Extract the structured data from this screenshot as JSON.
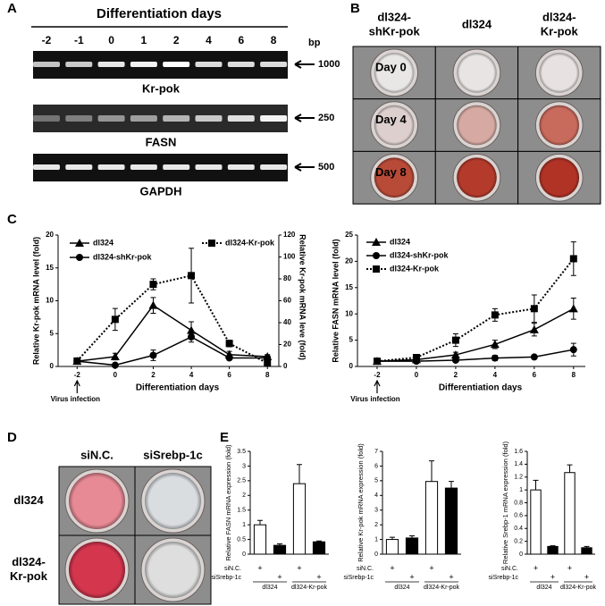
{
  "panels": {
    "A": {
      "label": "A",
      "title": "Differentiation days",
      "lanes": [
        "-2",
        "-1",
        "0",
        "1",
        "2",
        "4",
        "6",
        "8"
      ],
      "bp_label": "bp",
      "gels": [
        {
          "name": "Kr-pok",
          "size": "1000"
        },
        {
          "name": "FASN",
          "size": "250"
        },
        {
          "name": "GAPDH",
          "size": "500"
        }
      ]
    },
    "B": {
      "label": "B",
      "columns": [
        [
          "dl324-",
          "shKr-pok"
        ],
        [
          "dl324"
        ],
        [
          "dl324-",
          "Kr-pok"
        ]
      ],
      "rows": [
        "Day 0",
        "Day  4",
        "Day 8"
      ]
    },
    "C": {
      "label": "C"
    },
    "D": {
      "label": "D",
      "columns": [
        "siN.C.",
        "siSrebp-1c"
      ],
      "rows": [
        [
          "dl324"
        ],
        [
          "dl324-",
          "Kr-pok"
        ]
      ]
    },
    "E": {
      "label": "E"
    }
  },
  "chart_data": [
    {
      "type": "line",
      "x": [
        -2,
        0,
        2,
        4,
        6,
        8
      ],
      "xlim": [
        -3,
        8.6
      ],
      "xticks": [
        -2,
        0,
        2,
        4,
        6,
        8
      ],
      "xlabel": "Differentiation days",
      "ylabel": "Relative Kr-pok mRNA level (fold)",
      "y2label": "Relative Kr-pok mRNA leve (fold)",
      "ylim": [
        0,
        20
      ],
      "yticks": [
        0,
        5,
        10,
        15,
        20
      ],
      "y2lim": [
        0,
        120
      ],
      "y2ticks": [
        0,
        20,
        40,
        60,
        80,
        100,
        120
      ],
      "annotation": "Virus infection",
      "series": [
        {
          "name": "dl324",
          "color": "#000000",
          "marker": "triangle",
          "dashed": false,
          "values": [
            0.8,
            1.5,
            9.3,
            5.5,
            1.8,
            1.5
          ],
          "errors": [
            0.3,
            0.5,
            1.2,
            1.3,
            0.5,
            0.3
          ]
        },
        {
          "name": "dl324-shKr-pok",
          "color": "#000000",
          "marker": "circle",
          "dashed": false,
          "values": [
            0.8,
            0.2,
            1.7,
            4.5,
            1.3,
            1.3
          ],
          "errors": [
            0.3,
            0.2,
            0.8,
            0.8,
            0.3,
            0.3
          ]
        },
        {
          "name": "dl324-Kr-pok",
          "color": "#000000",
          "marker": "square",
          "dashed": true,
          "axis": "y2",
          "values": [
            5,
            43,
            75,
            83,
            21,
            3
          ],
          "errors": [
            1,
            10,
            5,
            25,
            3,
            2
          ]
        }
      ]
    },
    {
      "type": "line",
      "x": [
        -2,
        0,
        2,
        4,
        6,
        8
      ],
      "xlim": [
        -3,
        8.6
      ],
      "xticks": [
        -2,
        0,
        2,
        4,
        6,
        8
      ],
      "xlabel": "Differentiation days",
      "ylabel": "Relative FASN mRNA level (fold)",
      "ylim": [
        0,
        25
      ],
      "yticks": [
        0,
        5,
        10,
        15,
        20,
        25
      ],
      "annotation": "Virus infection",
      "series": [
        {
          "name": "dl324",
          "color": "#000000",
          "marker": "triangle",
          "dashed": false,
          "values": [
            1,
            1.3,
            2.2,
            4.2,
            7,
            11
          ],
          "errors": [
            0.2,
            0.3,
            0.5,
            0.8,
            1.2,
            2
          ]
        },
        {
          "name": "dl324-shKr-pok",
          "color": "#000000",
          "marker": "circle",
          "dashed": false,
          "values": [
            1,
            1,
            1.2,
            1.6,
            1.8,
            3.2
          ],
          "errors": [
            0.2,
            0.2,
            0.3,
            0.5,
            0.3,
            1.2
          ]
        },
        {
          "name": "dl324-Kr-pok",
          "color": "#000000",
          "marker": "square",
          "dashed": true,
          "values": [
            1,
            1.7,
            5,
            9.8,
            11,
            20.5
          ],
          "errors": [
            0.2,
            0.4,
            1.2,
            1.2,
            2.6,
            3.2
          ]
        }
      ]
    },
    {
      "type": "bar",
      "ylabel": "Relative FASN mRNA expression (fold)",
      "ylim": [
        0,
        3.5
      ],
      "yticks": [
        0,
        0.5,
        1,
        1.5,
        2,
        2.5,
        3,
        3.5
      ],
      "values": [
        1,
        0.3,
        2.4,
        0.42
      ],
      "errors": [
        0.15,
        0.05,
        0.65,
        0.03
      ],
      "colors": [
        "#ffffff",
        "#000000",
        "#ffffff",
        "#000000"
      ],
      "treatments": [
        {
          "name": "siN.C.",
          "marks": [
            "+",
            null,
            "+",
            null
          ]
        },
        {
          "name": "siSrebp-1c",
          "marks": [
            null,
            "+",
            null,
            "+"
          ]
        }
      ],
      "groups": [
        "dl324",
        "dl324-Kr-pok"
      ]
    },
    {
      "type": "bar",
      "ylabel": "Relative Kr-pok mRNA expression (fold)",
      "ylim": [
        0,
        7
      ],
      "yticks": [
        0,
        1,
        2,
        3,
        4,
        5,
        6,
        7
      ],
      "values": [
        1,
        1.1,
        4.95,
        4.5
      ],
      "errors": [
        0.15,
        0.15,
        1.4,
        0.45
      ],
      "colors": [
        "#ffffff",
        "#000000",
        "#ffffff",
        "#000000"
      ],
      "treatments": [
        {
          "name": "siN.C.",
          "marks": [
            "+",
            null,
            "+",
            null
          ]
        },
        {
          "name": "siSrebp-1c",
          "marks": [
            null,
            "+",
            null,
            "+"
          ]
        }
      ],
      "groups": [
        "dl324",
        "dl324-Kr-pok"
      ]
    },
    {
      "type": "bar",
      "ylabel": "Relative Srebp-1 mRNA expression (fold)",
      "ylim": [
        0,
        1.6
      ],
      "yticks": [
        0,
        0.2,
        0.4,
        0.6,
        0.8,
        1,
        1.2,
        1.4,
        1.6
      ],
      "values": [
        1,
        0.12,
        1.27,
        0.1
      ],
      "errors": [
        0.15,
        0.01,
        0.12,
        0.02
      ],
      "colors": [
        "#ffffff",
        "#000000",
        "#ffffff",
        "#000000"
      ],
      "treatments": [
        {
          "name": "siN.C.",
          "marks": [
            "+",
            null,
            "+",
            null
          ]
        },
        {
          "name": "siSrebp-1c",
          "marks": [
            null,
            "+",
            null,
            "+"
          ]
        }
      ],
      "groups": [
        "dl324",
        "dl324-Kr-pok"
      ]
    }
  ]
}
